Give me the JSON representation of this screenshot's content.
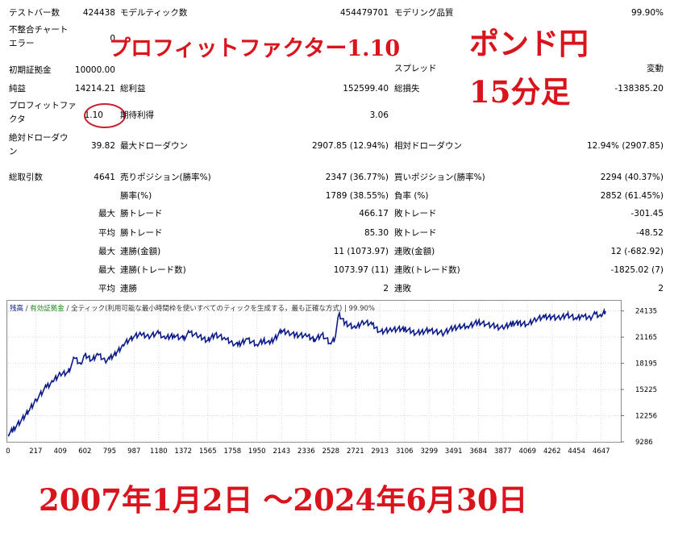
{
  "report": {
    "bars_label": "テストバー数",
    "bars_value": "424438",
    "ticks_label": "モデルティック数",
    "ticks_value": "454479701",
    "quality_label": "モデリング品質",
    "quality_value": "99.90%",
    "mismatch_label_1": "不整合チャート",
    "mismatch_label_2": "エラー",
    "mismatch_value": "0",
    "deposit_label": "初期証拠金",
    "deposit_value": "10000.00",
    "spread_label": "スプレッド",
    "spread_value": "変動",
    "net_label": "純益",
    "net_value": "14214.21",
    "gross_profit_label": "総利益",
    "gross_profit_value": "152599.40",
    "gross_loss_label": "総損失",
    "gross_loss_value": "-138385.20",
    "pf_label_1": "プロフィットファ",
    "pf_label_2": "クタ",
    "pf_value": "1.10",
    "expected_label": "期待利得",
    "expected_value": "3.06",
    "abs_dd_label_1": "絶対ドローダウ",
    "abs_dd_label_2": "ン",
    "abs_dd_value": "39.82",
    "max_dd_label": "最大ドローダウン",
    "max_dd_value": "2907.85 (12.94%)",
    "rel_dd_label": "相対ドローダウン",
    "rel_dd_value": "12.94% (2907.85)",
    "trades_label": "総取引数",
    "trades_value": "4641",
    "short_label": "売りポジション(勝率%)",
    "short_value": "2347 (36.77%)",
    "long_label": "買いポジション(勝率%)",
    "long_value": "2294 (40.37%)",
    "winrate_label": "勝率(%)",
    "winrate_value": "1789 (38.55%)",
    "lossrate_label": "負率 (%)",
    "lossrate_value": "2852 (61.45%)",
    "largest_label": "最大",
    "largest_win_label": "勝トレード",
    "largest_win_value": "466.17",
    "largest_loss_label": "敗トレード",
    "largest_loss_value": "-301.45",
    "average_label": "平均",
    "avg_win_label": "勝トレード",
    "avg_win_value": "85.30",
    "avg_loss_label": "敗トレード",
    "avg_loss_value": "-48.52",
    "max_label_a": "最大",
    "consec_wins_money_label": "連勝(金額)",
    "consec_wins_money_value": "11 (1073.97)",
    "consec_losses_money_label": "連敗(金額)",
    "consec_losses_money_value": "12 (-682.92)",
    "max_label_b": "最大",
    "consec_profit_label": "連勝(トレード数)",
    "consec_profit_value": "1073.97 (11)",
    "consec_loss_label": "連敗(トレード数)",
    "consec_loss_value": "-1825.02 (7)",
    "avg_label_c": "平均",
    "avg_consec_wins_label": "連勝",
    "avg_consec_wins_value": "2",
    "avg_consec_losses_label": "連敗",
    "avg_consec_losses_value": "2"
  },
  "overlay": {
    "pf_text": "プロフィットファクター1.10",
    "pair_text": "ポンド円",
    "tf_text": "15分足",
    "date_text": "2007年1月2日 ～2024年6月30日"
  },
  "colors": {
    "accent_red": "#d9141c",
    "balance_line": "#0b1b8a",
    "legend_green": "#1a8a1a",
    "axis_gray": "#6b6b6b"
  },
  "chart_legend": {
    "balance": "残高",
    "sep1": " / ",
    "margin": "有効証拠金",
    "rest": " / 全ティック(利用可能な最小時間枠を使いすべてのティックを生成する，最も正確な方式)",
    "sep2": " | ",
    "quality": "99.90%"
  },
  "chart_data": {
    "type": "line",
    "x_ticks": [
      "0",
      "217",
      "409",
      "602",
      "795",
      "987",
      "1180",
      "1372",
      "1565",
      "1758",
      "1950",
      "2143",
      "2336",
      "2528",
      "2721",
      "2913",
      "3106",
      "3299",
      "3491",
      "3684",
      "3877",
      "4069",
      "4262",
      "4454",
      "4647"
    ],
    "y_ticks": [
      "24135",
      "21165",
      "18195",
      "15225",
      "12256",
      "9286"
    ],
    "xlim": [
      0,
      4800
    ],
    "ylim": [
      9286,
      25200
    ],
    "grid": true,
    "series": [
      {
        "x": [
          0,
          40,
          100,
          160,
          220,
          300,
          350,
          409,
          470,
          520,
          570,
          602,
          660,
          700,
          760,
          795,
          850,
          900,
          960,
          987,
          1040,
          1100,
          1180,
          1230,
          1300,
          1372,
          1420,
          1480,
          1565,
          1620,
          1700,
          1758,
          1800,
          1870,
          1950,
          2000,
          2050,
          2143,
          2200,
          2250,
          2336,
          2400,
          2460,
          2528,
          2560,
          2590,
          2640,
          2721,
          2780,
          2850,
          2913,
          3000,
          3106,
          3200,
          3299,
          3400,
          3491,
          3550,
          3600,
          3684,
          3750,
          3877,
          3950,
          4000,
          4069,
          4130,
          4200,
          4262,
          4320,
          4380,
          4454,
          4500,
          4560,
          4600,
          4647,
          4680
        ],
        "y": [
          10100,
          10700,
          11600,
          12800,
          14100,
          15500,
          16100,
          17000,
          17200,
          18800,
          18100,
          19100,
          18600,
          19300,
          18500,
          18700,
          19400,
          20300,
          21000,
          21200,
          21500,
          21300,
          21600,
          21000,
          21400,
          21000,
          21700,
          21300,
          20800,
          21500,
          21000,
          20500,
          20200,
          21000,
          20300,
          20800,
          20400,
          21900,
          21700,
          21400,
          21300,
          20900,
          21500,
          20400,
          21000,
          23700,
          22800,
          22200,
          22900,
          22600,
          21800,
          22000,
          22100,
          21600,
          22000,
          21600,
          22200,
          22300,
          22400,
          22900,
          22600,
          22200,
          22700,
          22800,
          22600,
          23200,
          23400,
          23500,
          23300,
          23700,
          23200,
          23600,
          23400,
          23800,
          23500,
          24100
        ]
      }
    ]
  }
}
